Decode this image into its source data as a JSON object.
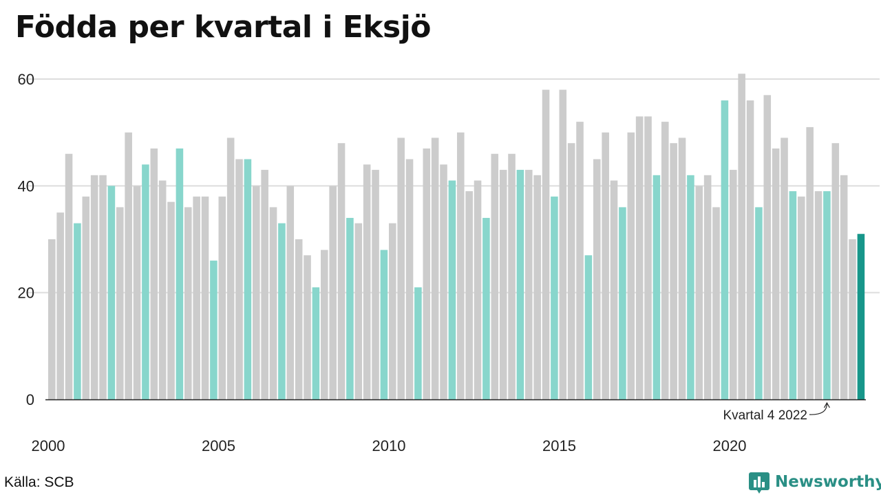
{
  "title": "Födda per kvartal i Eksjö",
  "source": "Källa: SCB",
  "brand": {
    "name": "Newsworthy",
    "icon": "bar-chart-logo-icon",
    "color": "#2a8f85"
  },
  "colors": {
    "bar": "#cccccc",
    "highlight": "#88d6cc",
    "latest": "#17968a",
    "grid": "#dddddd",
    "axis": "#222222"
  },
  "chart_data": {
    "type": "bar",
    "title": "Födda per kvartal i Eksjö",
    "xlabel": "",
    "ylabel": "",
    "ylim": [
      0,
      60
    ],
    "yticks": [
      0,
      20,
      40,
      60
    ],
    "grid": true,
    "xtick_labels": [
      "2000",
      "2005",
      "2010",
      "2015",
      "2020"
    ],
    "start": {
      "year": 2000,
      "quarter": 1
    },
    "highlight_quarter": 4,
    "values": [
      30,
      35,
      46,
      33,
      38,
      42,
      42,
      40,
      36,
      50,
      40,
      44,
      47,
      41,
      37,
      47,
      36,
      38,
      38,
      26,
      38,
      49,
      45,
      45,
      40,
      43,
      36,
      33,
      40,
      30,
      27,
      21,
      28,
      40,
      48,
      34,
      33,
      44,
      43,
      28,
      33,
      49,
      45,
      21,
      47,
      49,
      44,
      41,
      50,
      39,
      41,
      34,
      46,
      43,
      46,
      43,
      43,
      42,
      58,
      38,
      58,
      48,
      52,
      27,
      45,
      50,
      41,
      36,
      50,
      53,
      53,
      42,
      52,
      48,
      49,
      42,
      40,
      42,
      36,
      56,
      43,
      61,
      56,
      36,
      57,
      47,
      49,
      39,
      38,
      51,
      39,
      39,
      48,
      42,
      30,
      31
    ],
    "annotation": {
      "text": "Kvartal 4 2022",
      "target": {
        "year": 2022,
        "quarter": 4
      }
    }
  }
}
